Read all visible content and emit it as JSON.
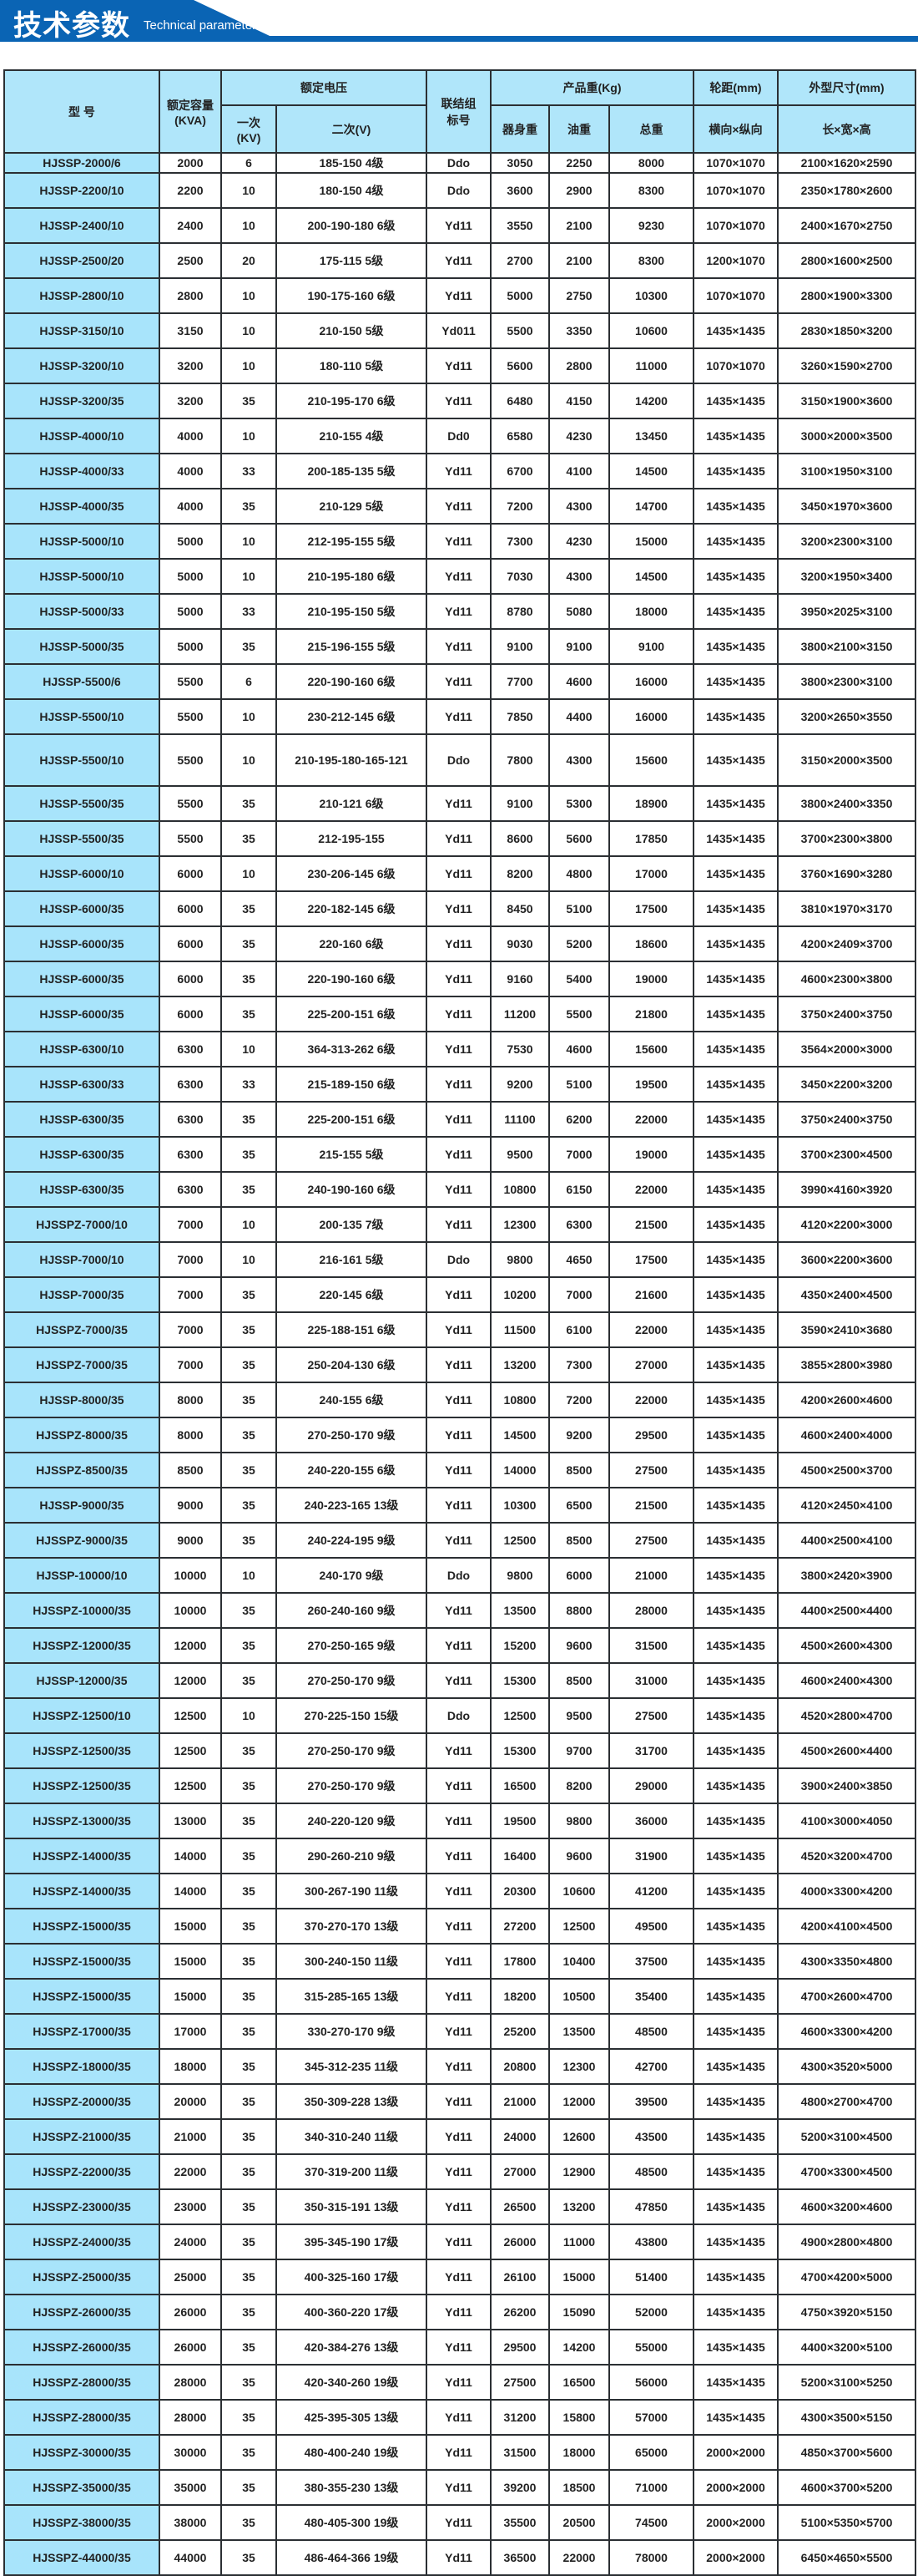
{
  "banner": {
    "title": "技术参数",
    "subtitle": "Technical parameter",
    "color": "#0a64b4"
  },
  "header": {
    "model": "型 号",
    "capacity": "额定容量",
    "capacity_unit": "(KVA)",
    "rated_voltage": "额定电压",
    "primary": "一次",
    "primary_unit": "(KV)",
    "secondary": "二次(V)",
    "group": "联结组",
    "group2": "标号",
    "weight": "产品重(Kg)",
    "body_weight": "器身重",
    "oil_weight": "油重",
    "total_weight": "总重",
    "gauge": "轮距(mm)",
    "gauge_sub": "横向×纵向",
    "dims": "外型尺寸(mm)",
    "dims_sub": "长×宽×高"
  },
  "colors": {
    "header_bg": "#b0e6fa",
    "model_bg": "#a8e4fb",
    "border": "#2b2f33"
  },
  "rows": [
    [
      "HJSSP-2000/6",
      "2000",
      "6",
      "185-150 4级",
      "Ddo",
      "3050",
      "2250",
      "8000",
      "1070×1070",
      "2100×1620×2590"
    ],
    [
      "HJSSP-2200/10",
      "2200",
      "10",
      "180-150 4级",
      "Ddo",
      "3600",
      "2900",
      "8300",
      "1070×1070",
      "2350×1780×2600"
    ],
    [
      "HJSSP-2400/10",
      "2400",
      "10",
      "200-190-180 6级",
      "Yd11",
      "3550",
      "2100",
      "9230",
      "1070×1070",
      "2400×1670×2750"
    ],
    [
      "HJSSP-2500/20",
      "2500",
      "20",
      "175-115 5级",
      "Yd11",
      "2700",
      "2100",
      "8300",
      "1200×1070",
      "2800×1600×2500"
    ],
    [
      "HJSSP-2800/10",
      "2800",
      "10",
      "190-175-160 6级",
      "Yd11",
      "5000",
      "2750",
      "10300",
      "1070×1070",
      "2800×1900×3300"
    ],
    [
      "HJSSP-3150/10",
      "3150",
      "10",
      "210-150 5级",
      "Yd011",
      "5500",
      "3350",
      "10600",
      "1435×1435",
      "2830×1850×3200"
    ],
    [
      "HJSSP-3200/10",
      "3200",
      "10",
      "180-110 5级",
      "Yd11",
      "5600",
      "2800",
      "11000",
      "1070×1070",
      "3260×1590×2700"
    ],
    [
      "HJSSP-3200/35",
      "3200",
      "35",
      "210-195-170 6级",
      "Yd11",
      "6480",
      "4150",
      "14200",
      "1435×1435",
      "3150×1900×3600"
    ],
    [
      "HJSSP-4000/10",
      "4000",
      "10",
      "210-155 4级",
      "Dd0",
      "6580",
      "4230",
      "13450",
      "1435×1435",
      "3000×2000×3500"
    ],
    [
      "HJSSP-4000/33",
      "4000",
      "33",
      "200-185-135 5级",
      "Yd11",
      "6700",
      "4100",
      "14500",
      "1435×1435",
      "3100×1950×3100"
    ],
    [
      "HJSSP-4000/35",
      "4000",
      "35",
      "210-129 5级",
      "Yd11",
      "7200",
      "4300",
      "14700",
      "1435×1435",
      "3450×1970×3600"
    ],
    [
      "HJSSP-5000/10",
      "5000",
      "10",
      "212-195-155 5级",
      "Yd11",
      "7300",
      "4230",
      "15000",
      "1435×1435",
      "3200×2300×3100"
    ],
    [
      "HJSSP-5000/10",
      "5000",
      "10",
      "210-195-180 6级",
      "Yd11",
      "7030",
      "4300",
      "14500",
      "1435×1435",
      "3200×1950×3400"
    ],
    [
      "HJSSP-5000/33",
      "5000",
      "33",
      "210-195-150 5级",
      "Yd11",
      "8780",
      "5080",
      "18000",
      "1435×1435",
      "3950×2025×3100"
    ],
    [
      "HJSSP-5000/35",
      "5000",
      "35",
      "215-196-155 5级",
      "Yd11",
      "9100",
      "9100",
      "9100",
      "1435×1435",
      "3800×2100×3150"
    ],
    [
      "HJSSP-5500/6",
      "5500",
      "6",
      "220-190-160 6级",
      "Yd11",
      "7700",
      "4600",
      "16000",
      "1435×1435",
      "3800×2300×3100"
    ],
    [
      "HJSSP-5500/10",
      "5500",
      "10",
      "230-212-145 6级",
      "Yd11",
      "7850",
      "4400",
      "16000",
      "1435×1435",
      "3200×2650×3550"
    ],
    [
      "HJSSP-5500/10",
      "5500",
      "10",
      "210-195-180-165-121",
      "Ddo",
      "7800",
      "4300",
      "15600",
      "1435×1435",
      "3150×2000×3500"
    ],
    [
      "HJSSP-5500/35",
      "5500",
      "35",
      "210-121 6级",
      "Yd11",
      "9100",
      "5300",
      "18900",
      "1435×1435",
      "3800×2400×3350"
    ],
    [
      "HJSSP-5500/35",
      "5500",
      "35",
      "212-195-155",
      "Yd11",
      "8600",
      "5600",
      "17850",
      "1435×1435",
      "3700×2300×3800"
    ],
    [
      "HJSSP-6000/10",
      "6000",
      "10",
      "230-206-145 6级",
      "Yd11",
      "8200",
      "4800",
      "17000",
      "1435×1435",
      "3760×1690×3280"
    ],
    [
      "HJSSP-6000/35",
      "6000",
      "35",
      "220-182-145 6级",
      "Yd11",
      "8450",
      "5100",
      "17500",
      "1435×1435",
      "3810×1970×3170"
    ],
    [
      "HJSSP-6000/35",
      "6000",
      "35",
      "220-160 6级",
      "Yd11",
      "9030",
      "5200",
      "18600",
      "1435×1435",
      "4200×2409×3700"
    ],
    [
      "HJSSP-6000/35",
      "6000",
      "35",
      "220-190-160 6级",
      "Yd11",
      "9160",
      "5400",
      "19000",
      "1435×1435",
      "4600×2300×3800"
    ],
    [
      "HJSSP-6000/35",
      "6000",
      "35",
      "225-200-151 6级",
      "Yd11",
      "11200",
      "5500",
      "21800",
      "1435×1435",
      "3750×2400×3750"
    ],
    [
      "HJSSP-6300/10",
      "6300",
      "10",
      "364-313-262 6级",
      "Yd11",
      "7530",
      "4600",
      "15600",
      "1435×1435",
      "3564×2000×3000"
    ],
    [
      "HJSSP-6300/33",
      "6300",
      "33",
      "215-189-150 6级",
      "Yd11",
      "9200",
      "5100",
      "19500",
      "1435×1435",
      "3450×2200×3200"
    ],
    [
      "HJSSP-6300/35",
      "6300",
      "35",
      "225-200-151 6级",
      "Yd11",
      "11100",
      "6200",
      "22000",
      "1435×1435",
      "3750×2400×3750"
    ],
    [
      "HJSSP-6300/35",
      "6300",
      "35",
      "215-155 5级",
      "Yd11",
      "9500",
      "7000",
      "19000",
      "1435×1435",
      "3700×2300×4500"
    ],
    [
      "HJSSP-6300/35",
      "6300",
      "35",
      "240-190-160 6级",
      "Yd11",
      "10800",
      "6150",
      "22000",
      "1435×1435",
      "3990×4160×3920"
    ],
    [
      "HJSSPZ-7000/10",
      "7000",
      "10",
      "200-135 7级",
      "Yd11",
      "12300",
      "6300",
      "21500",
      "1435×1435",
      "4120×2200×3000"
    ],
    [
      "HJSSP-7000/10",
      "7000",
      "10",
      "216-161 5级",
      "Ddo",
      "9800",
      "4650",
      "17500",
      "1435×1435",
      "3600×2200×3600"
    ],
    [
      "HJSSP-7000/35",
      "7000",
      "35",
      "220-145 6级",
      "Yd11",
      "10200",
      "7000",
      "21600",
      "1435×1435",
      "4350×2400×4500"
    ],
    [
      "HJSSPZ-7000/35",
      "7000",
      "35",
      "225-188-151 6级",
      "Yd11",
      "11500",
      "6100",
      "22000",
      "1435×1435",
      "3590×2410×3680"
    ],
    [
      "HJSSPZ-7000/35",
      "7000",
      "35",
      "250-204-130 6级",
      "Yd11",
      "13200",
      "7300",
      "27000",
      "1435×1435",
      "3855×2800×3980"
    ],
    [
      "HJSSP-8000/35",
      "8000",
      "35",
      "240-155 6级",
      "Yd11",
      "10800",
      "7200",
      "22000",
      "1435×1435",
      "4200×2600×4600"
    ],
    [
      "HJSSPZ-8000/35",
      "8000",
      "35",
      "270-250-170 9级",
      "Yd11",
      "14500",
      "9200",
      "29500",
      "1435×1435",
      "4600×2400×4000"
    ],
    [
      "HJSSPZ-8500/35",
      "8500",
      "35",
      "240-220-155 6级",
      "Yd11",
      "14000",
      "8500",
      "27500",
      "1435×1435",
      "4500×2500×3700"
    ],
    [
      "HJSSP-9000/35",
      "9000",
      "35",
      "240-223-165 13级",
      "Yd11",
      "10300",
      "6500",
      "21500",
      "1435×1435",
      "4120×2450×4100"
    ],
    [
      "HJSSPZ-9000/35",
      "9000",
      "35",
      "240-224-195 9级",
      "Yd11",
      "12500",
      "8500",
      "27500",
      "1435×1435",
      "4400×2500×4100"
    ],
    [
      "HJSSP-10000/10",
      "10000",
      "10",
      "240-170 9级",
      "Ddo",
      "9800",
      "6000",
      "21000",
      "1435×1435",
      "3800×2420×3900"
    ],
    [
      "HJSSPZ-10000/35",
      "10000",
      "35",
      "260-240-160 9级",
      "Yd11",
      "13500",
      "8800",
      "28000",
      "1435×1435",
      "4400×2500×4400"
    ],
    [
      "HJSSPZ-12000/35",
      "12000",
      "35",
      "270-250-165 9级",
      "Yd11",
      "15200",
      "9600",
      "31500",
      "1435×1435",
      "4500×2600×4300"
    ],
    [
      "HJSSP-12000/35",
      "12000",
      "35",
      "270-250-170 9级",
      "Yd11",
      "15300",
      "8500",
      "31000",
      "1435×1435",
      "4600×2400×4300"
    ],
    [
      "HJSSPZ-12500/10",
      "12500",
      "10",
      "270-225-150 15级",
      "Ddo",
      "12500",
      "9500",
      "27500",
      "1435×1435",
      "4520×2800×4700"
    ],
    [
      "HJSSPZ-12500/35",
      "12500",
      "35",
      "270-250-170 9级",
      "Yd11",
      "15300",
      "9700",
      "31700",
      "1435×1435",
      "4500×2600×4400"
    ],
    [
      "HJSSPZ-12500/35",
      "12500",
      "35",
      "270-250-170 9级",
      "Yd11",
      "16500",
      "8200",
      "29000",
      "1435×1435",
      "3900×2400×3850"
    ],
    [
      "HJSSPZ-13000/35",
      "13000",
      "35",
      "240-220-120 9级",
      "Yd11",
      "19500",
      "9800",
      "36000",
      "1435×1435",
      "4100×3000×4050"
    ],
    [
      "HJSSPZ-14000/35",
      "14000",
      "35",
      "290-260-210 9级",
      "Yd11",
      "16400",
      "9600",
      "31900",
      "1435×1435",
      "4520×3200×4700"
    ],
    [
      "HJSSPZ-14000/35",
      "14000",
      "35",
      "300-267-190 11级",
      "Yd11",
      "20300",
      "10600",
      "41200",
      "1435×1435",
      "4000×3300×4200"
    ],
    [
      "HJSSPZ-15000/35",
      "15000",
      "35",
      "370-270-170 13级",
      "Yd11",
      "27200",
      "12500",
      "49500",
      "1435×1435",
      "4200×4100×4500"
    ],
    [
      "HJSSPZ-15000/35",
      "15000",
      "35",
      "300-240-150 11级",
      "Yd11",
      "17800",
      "10400",
      "37500",
      "1435×1435",
      "4300×3350×4800"
    ],
    [
      "HJSSPZ-15000/35",
      "15000",
      "35",
      "315-285-165 13级",
      "Yd11",
      "18200",
      "10500",
      "35400",
      "1435×1435",
      "4700×2600×4700"
    ],
    [
      "HJSSPZ-17000/35",
      "17000",
      "35",
      "330-270-170 9级",
      "Yd11",
      "25200",
      "13500",
      "48500",
      "1435×1435",
      "4600×3300×4200"
    ],
    [
      "HJSSPZ-18000/35",
      "18000",
      "35",
      "345-312-235 11级",
      "Yd11",
      "20800",
      "12300",
      "42700",
      "1435×1435",
      "4300×3520×5000"
    ],
    [
      "HJSSPZ-20000/35",
      "20000",
      "35",
      "350-309-228 13级",
      "Yd11",
      "21000",
      "12000",
      "39500",
      "1435×1435",
      "4800×2700×4700"
    ],
    [
      "HJSSPZ-21000/35",
      "21000",
      "35",
      "340-310-240 11级",
      "Yd11",
      "24000",
      "12600",
      "43500",
      "1435×1435",
      "5200×3100×4500"
    ],
    [
      "HJSSPZ-22000/35",
      "22000",
      "35",
      "370-319-200 11级",
      "Yd11",
      "27000",
      "12900",
      "48500",
      "1435×1435",
      "4700×3300×4500"
    ],
    [
      "HJSSPZ-23000/35",
      "23000",
      "35",
      "350-315-191 13级",
      "Yd11",
      "26500",
      "13200",
      "47850",
      "1435×1435",
      "4600×3200×4600"
    ],
    [
      "HJSSPZ-24000/35",
      "24000",
      "35",
      "395-345-190 17级",
      "Yd11",
      "26000",
      "11000",
      "43800",
      "1435×1435",
      "4900×2800×4800"
    ],
    [
      "HJSSPZ-25000/35",
      "25000",
      "35",
      "400-325-160 17级",
      "Yd11",
      "26100",
      "15000",
      "51400",
      "1435×1435",
      "4700×4200×5000"
    ],
    [
      "HJSSPZ-26000/35",
      "26000",
      "35",
      "400-360-220 17级",
      "Yd11",
      "26200",
      "15090",
      "52000",
      "1435×1435",
      "4750×3920×5150"
    ],
    [
      "HJSSPZ-26000/35",
      "26000",
      "35",
      "420-384-276 13级",
      "Yd11",
      "29500",
      "14200",
      "55000",
      "1435×1435",
      "4400×3200×5100"
    ],
    [
      "HJSSPZ-28000/35",
      "28000",
      "35",
      "420-340-260 19级",
      "Yd11",
      "27500",
      "16500",
      "56000",
      "1435×1435",
      "5200×3100×5250"
    ],
    [
      "HJSSPZ-28000/35",
      "28000",
      "35",
      "425-395-305 13级",
      "Yd11",
      "31200",
      "15800",
      "57000",
      "1435×1435",
      "4300×3500×5150"
    ],
    [
      "HJSSPZ-30000/35",
      "30000",
      "35",
      "480-400-240 19级",
      "Yd11",
      "31500",
      "18000",
      "65000",
      "2000×2000",
      "4850×3700×5600"
    ],
    [
      "HJSSPZ-35000/35",
      "35000",
      "35",
      "380-355-230 13级",
      "Yd11",
      "39200",
      "18500",
      "71000",
      "2000×2000",
      "4600×3700×5200"
    ],
    [
      "HJSSPZ-38000/35",
      "38000",
      "35",
      "480-405-300 19级",
      "Yd11",
      "35500",
      "20500",
      "74500",
      "2000×2000",
      "5100×5350×5700"
    ],
    [
      "HJSSPZ-44000/35",
      "44000",
      "35",
      "486-464-366 19级",
      "Yd11",
      "36500",
      "22000",
      "78000",
      "2000×2000",
      "6450×4650×5500"
    ]
  ]
}
